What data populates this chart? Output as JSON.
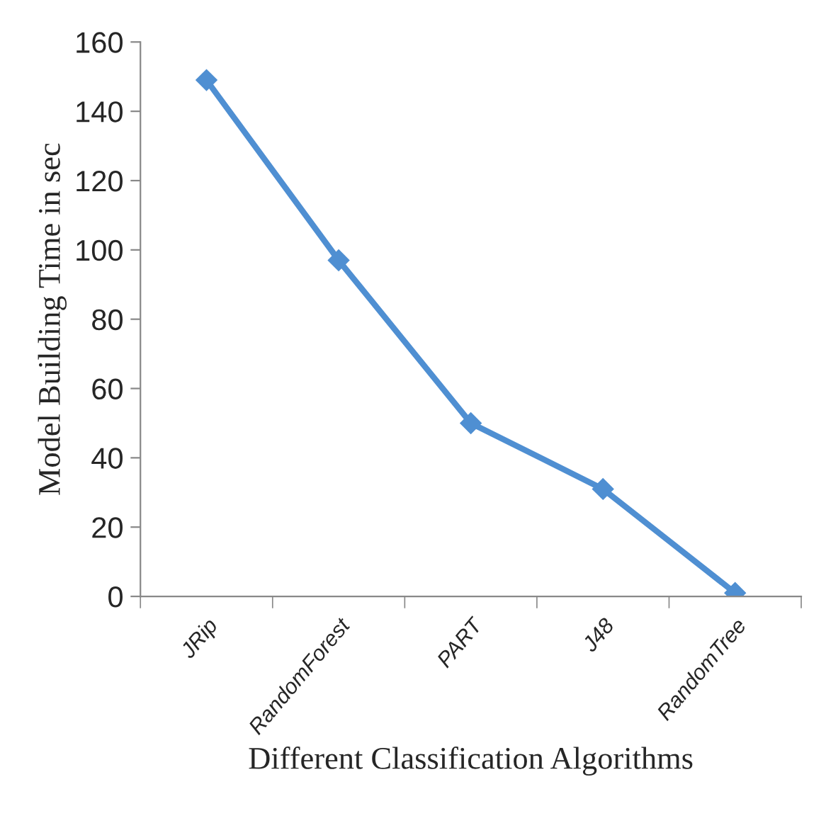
{
  "chart_data": {
    "type": "line",
    "xlabel": "Different Classification Algorithms",
    "ylabel": "Model Building Time in sec",
    "categories": [
      "JRip",
      "RandomForest",
      "PART",
      "J48",
      "RandomTree"
    ],
    "series": [
      {
        "color": "#4f8fd2",
        "values": [
          149,
          97,
          50,
          31,
          1
        ]
      }
    ],
    "ylim": [
      0,
      160
    ],
    "yticks": [
      0,
      20,
      40,
      60,
      80,
      100,
      120,
      140,
      160
    ],
    "grid": false,
    "legend": false,
    "marker": "diamond",
    "line_style": "solid"
  }
}
